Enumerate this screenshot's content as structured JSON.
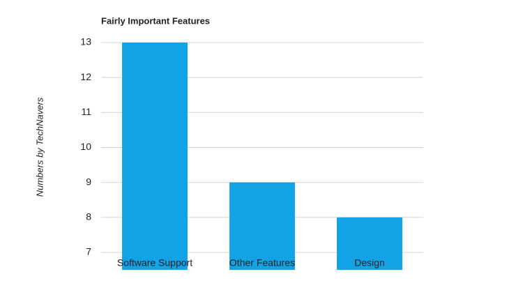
{
  "chart_data": {
    "type": "bar",
    "title": "Fairly Important Features",
    "y_label": "Numbers by TechNavers",
    "categories": [
      "Software Support",
      "Other Features",
      "Design"
    ],
    "values": [
      13,
      9,
      8
    ],
    "color": "#12a3e6",
    "ylim": [
      6.5,
      13
    ],
    "yticks": [
      7,
      8,
      9,
      10,
      11,
      12,
      13
    ],
    "grid": true
  }
}
